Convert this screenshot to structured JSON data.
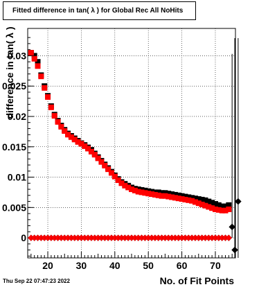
{
  "chart_data": {
    "type": "scatter",
    "title": "Fitted difference in tan( λ ) for Global Rec All NoHits",
    "xlabel": "No. of Fit Points",
    "ylabel": "difference in tan( λ )",
    "xlim": [
      14,
      76
    ],
    "ylim": [
      -0.0033,
      0.0345
    ],
    "x_ticks": [
      "20",
      "30",
      "40",
      "50",
      "60",
      "70"
    ],
    "y_ticks": [
      "0",
      "0.005",
      "0.01",
      "0.015",
      "0.02",
      "0.025",
      "0.03"
    ],
    "grid": true,
    "colors": {
      "black_series": "#000000",
      "red_series": "#ff0000"
    },
    "x": [
      15,
      16,
      17,
      18,
      19,
      20,
      21,
      22,
      23,
      24,
      25,
      26,
      27,
      28,
      29,
      30,
      31,
      32,
      33,
      34,
      35,
      36,
      37,
      38,
      39,
      40,
      41,
      42,
      43,
      44,
      45,
      46,
      47,
      48,
      49,
      50,
      51,
      52,
      53,
      54,
      55,
      56,
      57,
      58,
      59,
      60,
      61,
      62,
      63,
      64,
      65,
      66,
      67,
      68,
      69,
      70,
      71,
      72,
      73,
      74
    ],
    "series": [
      {
        "marker": "square",
        "color": "#000000",
        "values": [
          0.0305,
          0.03,
          0.029,
          0.0268,
          0.025,
          0.0234,
          0.0217,
          0.0203,
          0.0193,
          0.0185,
          0.0178,
          0.0172,
          0.0168,
          0.0164,
          0.016,
          0.0156,
          0.0153,
          0.0149,
          0.0145,
          0.0139,
          0.0133,
          0.0127,
          0.0121,
          0.0115,
          0.0109,
          0.0103,
          0.0097,
          0.0092,
          0.0089,
          0.0086,
          0.0083,
          0.0081,
          0.008,
          0.0079,
          0.0078,
          0.0077,
          0.0076,
          0.0075,
          0.0075,
          0.0074,
          0.0074,
          0.0073,
          0.0072,
          0.0071,
          0.007,
          0.0069,
          0.0068,
          0.0067,
          0.0066,
          0.0065,
          0.0064,
          0.0063,
          0.0062,
          0.006,
          0.0058,
          0.0056,
          0.0054,
          0.0052,
          0.0052,
          0.0054
        ]
      },
      {
        "marker": "square",
        "color": "#ff0000",
        "values": [
          0.0305,
          0.0295,
          0.0283,
          0.0266,
          0.0247,
          0.0232,
          0.0215,
          0.0201,
          0.0191,
          0.0183,
          0.0176,
          0.017,
          0.0166,
          0.0162,
          0.0158,
          0.0155,
          0.0151,
          0.0147,
          0.0142,
          0.0137,
          0.0131,
          0.0125,
          0.0119,
          0.0113,
          0.0107,
          0.0101,
          0.0095,
          0.009,
          0.0086,
          0.0083,
          0.008,
          0.0078,
          0.0076,
          0.0075,
          0.0074,
          0.0073,
          0.0072,
          0.0071,
          0.007,
          0.0069,
          0.0069,
          0.0068,
          0.0067,
          0.0066,
          0.0065,
          0.0064,
          0.0063,
          0.0062,
          0.0061,
          0.0059,
          0.0057,
          0.0055,
          0.0053,
          0.0051,
          0.0049,
          0.0047,
          0.0046,
          0.0045,
          0.0045,
          0.0047
        ]
      },
      {
        "marker": "diamond",
        "color": "#ff0000",
        "values": [
          0,
          0,
          0,
          0,
          0,
          0,
          0,
          0,
          0,
          0,
          0,
          0,
          0,
          0,
          0,
          0,
          0,
          0,
          0,
          0,
          0,
          0,
          0,
          0,
          0,
          0,
          0,
          0,
          0,
          0,
          0,
          0,
          0,
          0,
          0,
          0,
          0,
          0,
          0,
          0,
          0,
          0,
          0,
          0,
          0,
          0,
          0,
          0,
          0,
          0,
          0,
          0,
          0,
          0,
          0,
          0,
          0,
          0,
          0,
          0
        ]
      },
      {
        "marker": "diamond",
        "color": "#000000",
        "x": [
          75,
          75.8,
          76.8
        ],
        "values": [
          0.0018,
          -0.002,
          0.006
        ],
        "error_low": [
          0.0018,
          0.0145,
          0.01
        ],
        "error_high": [
          0.0285,
          0.0375,
          0.0355
        ]
      }
    ]
  },
  "timestamp": "Thu Sep 22 07:47:23 2022"
}
